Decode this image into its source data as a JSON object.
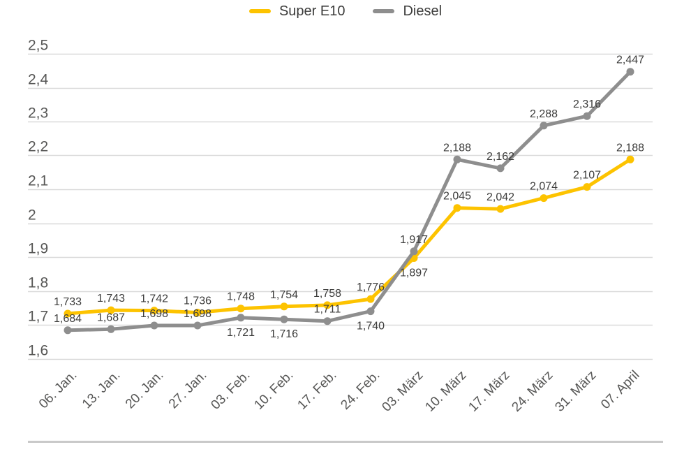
{
  "chart_data": {
    "type": "line",
    "x_labels": [
      "06. Jan.",
      "13. Jan.",
      "20. Jan.",
      "27. Jan.",
      "03. Feb.",
      "10. Feb.",
      "17. Feb.",
      "24. Feb.",
      "03. März",
      "10. März",
      "17. März",
      "24. März",
      "31. März",
      "07. April"
    ],
    "series": [
      {
        "name": "Super E10",
        "color": "#FDC300",
        "values": [
          1.733,
          1.743,
          1.742,
          1.736,
          1.748,
          1.754,
          1.758,
          1.776,
          1.897,
          2.045,
          2.042,
          2.074,
          2.107,
          2.188
        ],
        "point_labels": [
          "1,733",
          "1,743",
          "1,742",
          "1,736",
          "1,748",
          "1,754",
          "1,758",
          "1,776",
          "1,897",
          "2,045",
          "2,042",
          "2,074",
          "2,107",
          "2,188"
        ],
        "label_positions": [
          "above",
          "above",
          "above",
          "above",
          "above",
          "above",
          "above",
          "above",
          "below",
          "above",
          "above",
          "above",
          "above",
          "above"
        ]
      },
      {
        "name": "Diesel",
        "color": "#8E8E8E",
        "values": [
          1.684,
          1.687,
          1.698,
          1.698,
          1.721,
          1.716,
          1.711,
          1.74,
          1.917,
          2.188,
          2.162,
          2.288,
          2.316,
          2.447
        ],
        "point_labels": [
          "1,684",
          "1,687",
          "1,698",
          "1,698",
          "1,721",
          "1,716",
          "1,711",
          "1,740",
          "1,917",
          "2,188",
          "2,162",
          "2,288",
          "2,316",
          "2,447"
        ],
        "label_positions": [
          "above",
          "above",
          "above",
          "above",
          "below",
          "below",
          "above",
          "below",
          "above",
          "above",
          "above",
          "above",
          "above",
          "above"
        ]
      }
    ],
    "y_axis": {
      "range": [
        1.6,
        2.5
      ],
      "ticks": [
        {
          "value": 2.5,
          "label": "2,5"
        },
        {
          "value": 2.4,
          "label": "2,4"
        },
        {
          "value": 2.3,
          "label": "2,3"
        },
        {
          "value": 2.2,
          "label": "2,2"
        },
        {
          "value": 2.1,
          "label": "2,1"
        },
        {
          "value": 2.0,
          "label": "2"
        },
        {
          "value": 1.9,
          "label": "1,9"
        },
        {
          "value": 1.8,
          "label": "1,8"
        },
        {
          "value": 1.7,
          "label": "1,7"
        },
        {
          "value": 1.6,
          "label": "1,6"
        }
      ]
    },
    "grid": true,
    "legend_position": "top-center",
    "decimal_separator": ",",
    "colors": {
      "grid": "#D9D9D9",
      "axis_text": "#575756",
      "data_label_text": "#3C3C3B",
      "legend_text": "#3C3C3B",
      "divider": "#C9C9C9"
    }
  }
}
